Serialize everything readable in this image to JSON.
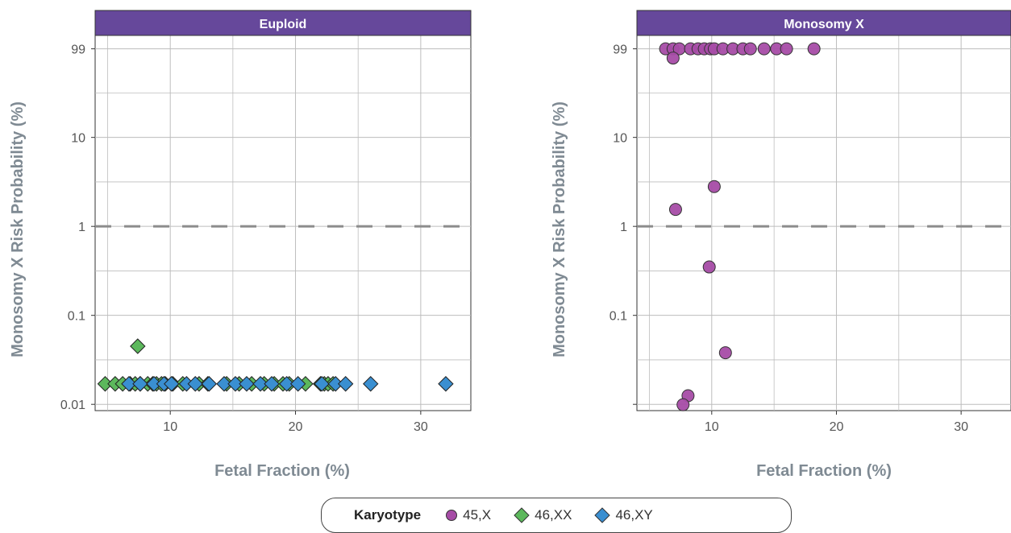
{
  "colors": {
    "header_bg": "#66489b",
    "header_text": "#ffffff",
    "axis_text": "#7f8a93",
    "tick_text": "#555555",
    "grid": "#bdbdbd",
    "threshold": "#8c8c8c",
    "k45X": "#a64ca6",
    "k46XX": "#5cb85c",
    "k46XY": "#3a8fd1"
  },
  "chart_data": [
    {
      "type": "scatter",
      "title": "Euploid",
      "xlabel": "Fetal Fraction (%)",
      "ylabel": "Monosomy X Risk Probability (%)",
      "x_ticks": [
        10,
        20,
        30
      ],
      "y_ticks": [
        {
          "value": 0.01,
          "label": "0.01"
        },
        {
          "value": 0.1,
          "label": "0.1"
        },
        {
          "value": 1,
          "label": "1"
        },
        {
          "value": 10,
          "label": "10"
        },
        {
          "value": 99,
          "label": "99"
        }
      ],
      "y_scale": "log",
      "threshold": 1,
      "series": [
        {
          "key": "46,XX",
          "marker": "diamond",
          "x": [
            4.8,
            5.6,
            6.2,
            6.8,
            7.2,
            7.4,
            7.6,
            8.2,
            8.6,
            8.9,
            9.3,
            9.6,
            10.2,
            11.0,
            12.3,
            13.0,
            14.5,
            15.5,
            16.5,
            17.5,
            18.3,
            19.0,
            19.5,
            20.8,
            22.0,
            22.3,
            22.6,
            23.0
          ],
          "y": [
            0.017,
            0.017,
            0.017,
            0.017,
            0.017,
            0.045,
            0.017,
            0.017,
            0.017,
            0.017,
            0.017,
            0.017,
            0.017,
            0.017,
            0.017,
            0.017,
            0.017,
            0.017,
            0.017,
            0.017,
            0.017,
            0.017,
            0.017,
            0.017,
            0.017,
            0.017,
            0.017,
            0.017
          ]
        },
        {
          "key": "46,XY",
          "marker": "diamond",
          "x": [
            6.7,
            7.6,
            8.7,
            9.5,
            10.1,
            11.3,
            12.0,
            13.1,
            14.3,
            15.2,
            16.1,
            17.2,
            18.1,
            19.3,
            20.2,
            22.1,
            23.2,
            24.0,
            26.0,
            32.0
          ],
          "y": [
            0.017,
            0.017,
            0.017,
            0.017,
            0.017,
            0.017,
            0.017,
            0.017,
            0.017,
            0.017,
            0.017,
            0.017,
            0.017,
            0.017,
            0.017,
            0.017,
            0.017,
            0.017,
            0.017,
            0.017
          ]
        }
      ]
    },
    {
      "type": "scatter",
      "title": "Monosomy X",
      "xlabel": "Fetal Fraction (%)",
      "ylabel": "Monosomy X Risk Probability (%)",
      "x_ticks": [
        10,
        20,
        30
      ],
      "y_ticks": [
        {
          "value": 0.1,
          "label": "0.1"
        },
        {
          "value": 1,
          "label": "1"
        },
        {
          "value": 10,
          "label": "10"
        },
        {
          "value": 99,
          "label": "99"
        }
      ],
      "y_scale": "log",
      "threshold": 1,
      "series": [
        {
          "key": "45,X",
          "marker": "circle",
          "x": [
            6.3,
            6.9,
            7.4,
            8.3,
            8.9,
            9.4,
            9.9,
            10.2,
            10.9,
            11.7,
            12.5,
            13.1,
            14.2,
            15.2,
            16.0,
            18.2,
            6.9,
            7.1,
            10.2,
            9.8,
            11.1,
            8.1,
            7.7
          ],
          "y": [
            99,
            99,
            99,
            99,
            99,
            99,
            99,
            99,
            99,
            99,
            99,
            99,
            99,
            99,
            99,
            99,
            78,
            1.55,
            2.8,
            0.35,
            0.038,
            0.0125,
            0.0099
          ]
        }
      ]
    }
  ],
  "legend": {
    "title": "Karyotype",
    "items": [
      {
        "key": "45,X",
        "label": "45,X",
        "marker": "circle"
      },
      {
        "key": "46,XX",
        "label": "46,XX",
        "marker": "diamond"
      },
      {
        "key": "46,XY",
        "label": "46,XY",
        "marker": "diamond"
      }
    ]
  }
}
